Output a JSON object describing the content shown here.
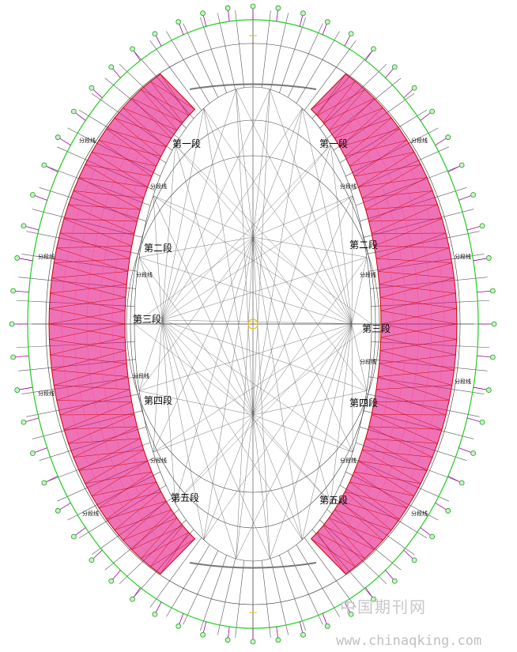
{
  "diagram": {
    "segments": [
      {
        "label": "第一段",
        "side": "left"
      },
      {
        "label": "第一段",
        "side": "right"
      },
      {
        "label": "第二段",
        "side": "left"
      },
      {
        "label": "第二段",
        "side": "right"
      },
      {
        "label": "第三段",
        "side": "left"
      },
      {
        "label": "第三段",
        "side": "right"
      },
      {
        "label": "第四段",
        "side": "left"
      },
      {
        "label": "第四段",
        "side": "right"
      },
      {
        "label": "第五段",
        "side": "left"
      },
      {
        "label": "第五段",
        "side": "right"
      }
    ],
    "split_label": "分段线",
    "colors": {
      "truss_pink": "#e0007a",
      "truss_red": "#d00000",
      "outer_ring_green": "#22cc22",
      "radial_grey": "#555555",
      "anchor_magenta": "#a000a0",
      "anchor_green": "#20a020",
      "center_yellow": "#e8c000"
    }
  },
  "watermark": {
    "site_cn": "中国期刊网",
    "site_url": "www.chinaqking.com"
  }
}
